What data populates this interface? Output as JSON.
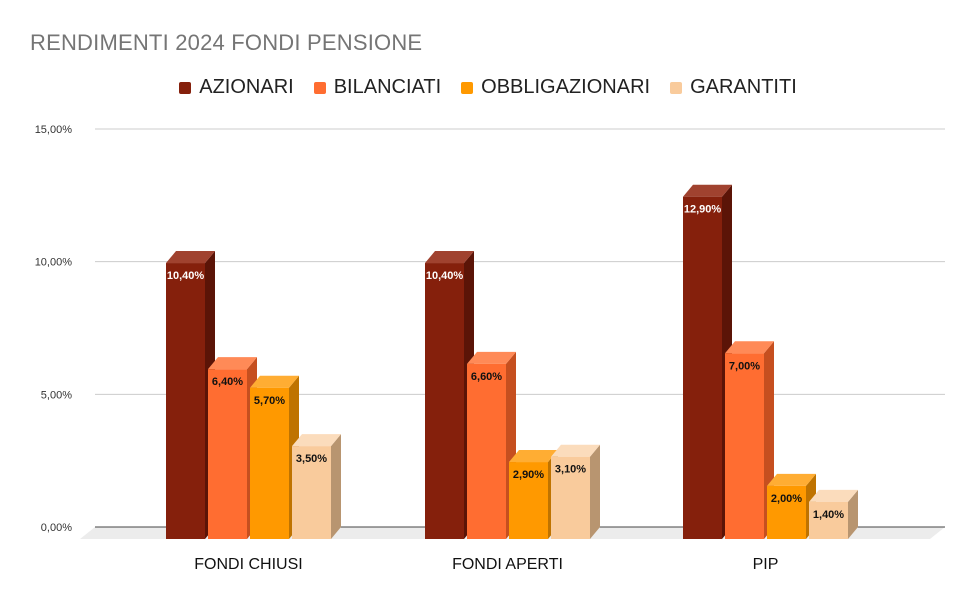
{
  "chart_data": {
    "type": "bar",
    "title": "RENDIMENTI 2024 FONDI PENSIONE",
    "categories": [
      "FONDI CHIUSI",
      "FONDI APERTI",
      "PIP"
    ],
    "series": [
      {
        "name": "AZIONARI",
        "values": [
          10.4,
          10.4,
          12.9
        ],
        "labels": [
          "10,40%",
          "10,40%",
          "12,90%"
        ],
        "color": "#85200c",
        "side_color": "#5b1407",
        "top_color": "#a0422f",
        "label_color": "#ffffff"
      },
      {
        "name": "BILANCIATI",
        "values": [
          6.4,
          6.6,
          7.0
        ],
        "labels": [
          "6,40%",
          "6,60%",
          "7,00%"
        ],
        "color": "#ff6d31",
        "side_color": "#c64f1f",
        "top_color": "#ff8a57",
        "label_color": "#111111"
      },
      {
        "name": "OBBLIGAZIONARI",
        "values": [
          5.7,
          2.9,
          2.0
        ],
        "labels": [
          "5,70%",
          "2,90%",
          "2,00%"
        ],
        "color": "#ff9900",
        "side_color": "#bf7300",
        "top_color": "#ffad33",
        "label_color": "#111111"
      },
      {
        "name": "GARANTITI",
        "values": [
          3.5,
          3.1,
          1.4
        ],
        "labels": [
          "3,50%",
          "3,10%",
          "1,40%"
        ],
        "color": "#f9cb9c",
        "side_color": "#b89570",
        "top_color": "#fbdcbc",
        "label_color": "#111111"
      }
    ],
    "ylim": [
      0,
      15
    ],
    "yticks": [
      0,
      5,
      10,
      15
    ],
    "ytick_labels": [
      "0,00%",
      "5,00%",
      "10,00%",
      "15,00%"
    ],
    "xlabel": "",
    "ylabel": "",
    "grid": true,
    "legend_position": "top-center"
  }
}
